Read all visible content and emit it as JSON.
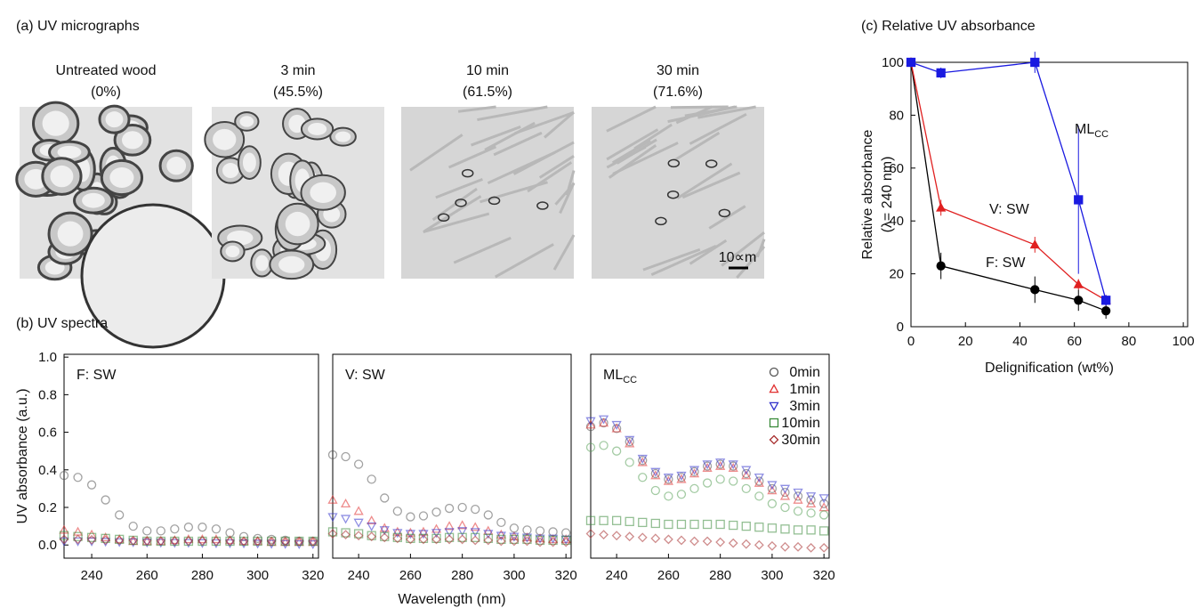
{
  "micrographs": {
    "title": "(a) UV micrographs",
    "images": [
      {
        "caption": "Untreated wood",
        "value": "(0%)"
      },
      {
        "caption": "3 min",
        "value": "(45.5%)"
      },
      {
        "caption": "10 min",
        "value": "(61.5%)"
      },
      {
        "caption": "30 min",
        "value": "(71.6%)"
      }
    ],
    "scale_bar": "10∝m"
  },
  "chart_data": [
    {
      "type": "scatter",
      "title": "(b) UV spectra",
      "annotation": "F: SW",
      "ylabel": "UV absorbance (a.u.)",
      "x": [
        230,
        235,
        240,
        245,
        250,
        255,
        260,
        265,
        270,
        275,
        280,
        285,
        290,
        295,
        300,
        305,
        310,
        315,
        320
      ],
      "xlim": [
        230,
        322
      ],
      "ylim": [
        -0.07,
        1.015
      ],
      "xticks": [
        240,
        260,
        280,
        300,
        320
      ],
      "yticks": [
        {
          "value": 0,
          "label": "0.0"
        },
        0.2,
        0.4,
        0.6,
        0.8,
        {
          "value": 1,
          "label": "1.0"
        }
      ],
      "series": [
        {
          "color": "#555555",
          "marker": "circle",
          "values": [
            0.37,
            0.36,
            0.32,
            0.24,
            0.16,
            0.1,
            0.075,
            0.075,
            0.085,
            0.095,
            0.095,
            0.085,
            0.065,
            0.045,
            0.035,
            0.03,
            0.025,
            0.02,
            0.02
          ]
        },
        {
          "color": "#e03030",
          "marker": "triangle-up",
          "values": [
            0.08,
            0.07,
            0.055,
            0.04,
            0.03,
            0.02,
            0.02,
            0.02,
            0.025,
            0.03,
            0.03,
            0.03,
            0.025,
            0.02,
            0.02,
            0.015,
            0.015,
            0.015,
            0.015
          ]
        },
        {
          "color": "#3333cc",
          "marker": "triangle-down",
          "values": [
            0.02,
            0.02,
            0.02,
            0.018,
            0.016,
            0.015,
            0.014,
            0.013,
            0.012,
            0.012,
            0.011,
            0.01,
            0.01,
            0.009,
            0.008,
            0.007,
            0.006,
            0.005,
            0.005
          ]
        },
        {
          "color": "#3a8a3a",
          "marker": "square",
          "values": [
            0.05,
            0.045,
            0.04,
            0.035,
            0.03,
            0.025,
            0.02,
            0.02,
            0.02,
            0.02,
            0.02,
            0.02,
            0.02,
            0.02,
            0.02,
            0.02,
            0.02,
            0.02,
            0.02
          ]
        },
        {
          "color": "#a83030",
          "marker": "diamond",
          "values": [
            0.03,
            0.03,
            0.028,
            0.026,
            0.025,
            0.024,
            0.023,
            0.022,
            0.022,
            0.022,
            0.022,
            0.021,
            0.021,
            0.02,
            0.02,
            0.02,
            0.02,
            0.02,
            0.02
          ]
        }
      ]
    },
    {
      "type": "scatter",
      "annotation": "V: SW",
      "xlabel": "Wavelength (nm)",
      "x": [
        230,
        235,
        240,
        245,
        250,
        255,
        260,
        265,
        270,
        275,
        280,
        285,
        290,
        295,
        300,
        305,
        310,
        315,
        320
      ],
      "xlim": [
        230,
        322
      ],
      "ylim": [
        -0.07,
        1.015
      ],
      "xticks": [
        240,
        260,
        280,
        300,
        320
      ],
      "series": [
        {
          "color": "#555555",
          "marker": "circle",
          "values": [
            0.48,
            0.47,
            0.43,
            0.35,
            0.25,
            0.18,
            0.15,
            0.155,
            0.175,
            0.195,
            0.2,
            0.19,
            0.16,
            0.12,
            0.09,
            0.08,
            0.075,
            0.07,
            0.065
          ]
        },
        {
          "color": "#e03030",
          "marker": "triangle-up",
          "values": [
            0.24,
            0.22,
            0.18,
            0.13,
            0.09,
            0.07,
            0.065,
            0.07,
            0.085,
            0.1,
            0.105,
            0.095,
            0.075,
            0.055,
            0.045,
            0.04,
            0.035,
            0.03,
            0.03
          ]
        },
        {
          "color": "#3333cc",
          "marker": "triangle-down",
          "values": [
            0.15,
            0.14,
            0.12,
            0.1,
            0.08,
            0.065,
            0.06,
            0.06,
            0.065,
            0.07,
            0.075,
            0.07,
            0.06,
            0.05,
            0.045,
            0.04,
            0.035,
            0.035,
            0.03
          ]
        },
        {
          "color": "#3a8a3a",
          "marker": "square",
          "values": [
            0.07,
            0.065,
            0.06,
            0.05,
            0.045,
            0.04,
            0.035,
            0.035,
            0.035,
            0.04,
            0.04,
            0.04,
            0.035,
            0.03,
            0.03,
            0.03,
            0.025,
            0.025,
            0.025
          ]
        },
        {
          "color": "#a83030",
          "marker": "diamond",
          "values": [
            0.06,
            0.055,
            0.05,
            0.045,
            0.04,
            0.035,
            0.03,
            0.03,
            0.03,
            0.03,
            0.03,
            0.025,
            0.025,
            0.02,
            0.02,
            0.02,
            0.015,
            0.015,
            0.015
          ]
        }
      ]
    },
    {
      "type": "scatter",
      "annotation": {
        "text": "ML",
        "sub": "CC"
      },
      "legend": "upper right",
      "x": [
        230,
        235,
        240,
        245,
        250,
        255,
        260,
        265,
        270,
        275,
        280,
        285,
        290,
        295,
        300,
        305,
        310,
        315,
        320
      ],
      "xlim": [
        230,
        322
      ],
      "ylim": [
        -0.07,
        1.015
      ],
      "xticks": [
        240,
        260,
        280,
        300,
        320
      ],
      "series": [
        {
          "name": "0min",
          "color": "#555555",
          "marker": "circle",
          "values": [
            0.63,
            0.65,
            0.62,
            0.55,
            0.45,
            0.38,
            0.35,
            0.36,
            0.39,
            0.42,
            0.43,
            0.42,
            0.38,
            0.34,
            0.3,
            0.28,
            0.26,
            0.24,
            0.22
          ]
        },
        {
          "name": "1min",
          "color": "#e03030",
          "marker": "triangle-up",
          "values": [
            0.64,
            0.65,
            0.62,
            0.54,
            0.44,
            0.37,
            0.34,
            0.35,
            0.38,
            0.41,
            0.42,
            0.41,
            0.37,
            0.33,
            0.29,
            0.26,
            0.24,
            0.22,
            0.2
          ]
        },
        {
          "name": "3min",
          "color": "#3333cc",
          "marker": "triangle-down",
          "values": [
            0.66,
            0.67,
            0.64,
            0.56,
            0.46,
            0.39,
            0.36,
            0.37,
            0.4,
            0.43,
            0.44,
            0.43,
            0.4,
            0.36,
            0.32,
            0.3,
            0.28,
            0.26,
            0.25
          ]
        },
        {
          "name": "10min",
          "color": "#3a8a3a",
          "marker": "square",
          "values": [
            0.13,
            0.13,
            0.13,
            0.125,
            0.12,
            0.115,
            0.11,
            0.11,
            0.11,
            0.11,
            0.11,
            0.105,
            0.1,
            0.095,
            0.09,
            0.085,
            0.08,
            0.08,
            0.075
          ]
        },
        {
          "name": "30min",
          "color": "#a83030",
          "marker": "diamond",
          "values": [
            0.06,
            0.055,
            0.05,
            0.045,
            0.04,
            0.035,
            0.03,
            0.025,
            0.02,
            0.02,
            0.015,
            0.01,
            0.005,
            0,
            -0.005,
            -0.01,
            -0.01,
            -0.015,
            -0.015
          ]
        },
        {
          "color": "#5aa05a",
          "marker": "circle",
          "values": [
            0.52,
            0.53,
            0.5,
            0.44,
            0.36,
            0.29,
            0.26,
            0.27,
            0.3,
            0.33,
            0.35,
            0.34,
            0.3,
            0.26,
            0.22,
            0.2,
            0.18,
            0.17,
            0.16
          ]
        }
      ]
    },
    {
      "type": "line",
      "title": "(c) Relative UV absorbance",
      "xlabel": "Delignification (wt%)",
      "ylabel": [
        "Relative absorbance",
        "(λ= 240 nm)"
      ],
      "x": [
        0,
        11,
        45.5,
        61.5,
        71.6
      ],
      "xlim": [
        0,
        101.6
      ],
      "ylim": [
        0,
        100
      ],
      "xticks": [
        0,
        20,
        40,
        60,
        80,
        100
      ],
      "yticks": [
        0,
        20,
        40,
        60,
        80,
        100
      ],
      "series": [
        {
          "name": "F: SW",
          "color": "#000000",
          "marker": "circle",
          "values": [
            100,
            23,
            14,
            10,
            6
          ],
          "errors": [
            null,
            5,
            5,
            4,
            3
          ]
        },
        {
          "name": "V: SW",
          "color": "#e02020",
          "marker": "triangle-up",
          "values": [
            100,
            45,
            31,
            16,
            10
          ],
          "errors": [
            null,
            3,
            3,
            2,
            2
          ]
        },
        {
          "name": "ML",
          "name_sub": "CC",
          "color": "#1a1ae0",
          "marker": "square",
          "values": [
            100,
            96,
            100,
            48,
            10
          ],
          "errors": [
            null,
            2,
            4,
            28,
            2
          ]
        }
      ]
    }
  ]
}
